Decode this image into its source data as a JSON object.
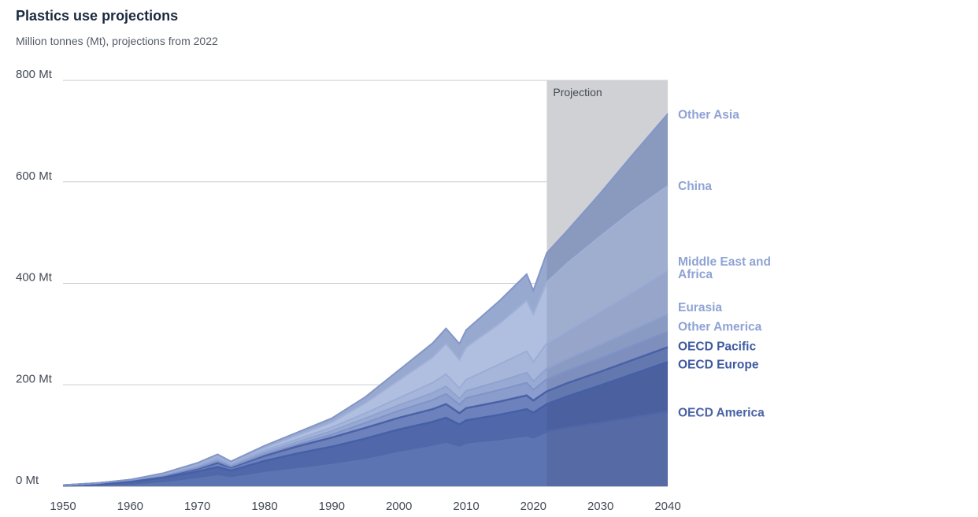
{
  "chart_data": {
    "type": "area",
    "stacked": true,
    "title": "Plastics use projections",
    "subtitle": "Million tonnes (Mt), projections from 2022",
    "projection_label": "Projection",
    "projection_start": 2022,
    "xlim": [
      1950,
      2040
    ],
    "ylim": [
      0,
      800
    ],
    "x_ticks": [
      1950,
      1960,
      1970,
      1980,
      1990,
      2000,
      2010,
      2020,
      2030,
      2040
    ],
    "y_ticks": [
      0,
      200,
      400,
      600,
      800
    ],
    "y_tick_labels": [
      "0 Mt",
      "200 Mt",
      "400 Mt",
      "600 Mt",
      "800 Mt"
    ],
    "grid": true,
    "x": [
      1950,
      1955,
      1960,
      1965,
      1970,
      1973,
      1975,
      1980,
      1985,
      1990,
      1995,
      2000,
      2005,
      2007,
      2009,
      2010,
      2015,
      2019,
      2020,
      2022,
      2025,
      2030,
      2035,
      2040
    ],
    "series": [
      {
        "name": "OECD America",
        "color": "#5d74b2",
        "label_color": "#4a62a6",
        "values": [
          1,
          3,
          5,
          10,
          18,
          24,
          20,
          30,
          38,
          46,
          56,
          70,
          82,
          88,
          80,
          86,
          93,
          100,
          96,
          108,
          115,
          125,
          136,
          147
        ]
      },
      {
        "name": "OECD Europe",
        "color": "#5068aa",
        "label_color": "#3f5aa0",
        "values": [
          1,
          2,
          4,
          7,
          11,
          14,
          11,
          20,
          27,
          32,
          38,
          42,
          45,
          47,
          42,
          44,
          48,
          52,
          49,
          54,
          62,
          74,
          86,
          98
        ]
      },
      {
        "name": "OECD Pacific",
        "color": "#6d82bd",
        "label_color": "#3f5aa0",
        "values": [
          0,
          1,
          2,
          3,
          5,
          8,
          6,
          10,
          14,
          18,
          21,
          23,
          25,
          27,
          22,
          24,
          26,
          27,
          24,
          25,
          26,
          27,
          28,
          29
        ]
      },
      {
        "name": "Other America",
        "color": "#8a9dcd",
        "label_color": "#8fa3d4",
        "values": [
          0,
          0,
          1,
          1,
          2,
          3,
          2,
          3,
          4,
          6,
          10,
          14,
          18,
          20,
          17,
          20,
          23,
          25,
          21,
          24,
          25,
          27,
          29,
          31
        ]
      },
      {
        "name": "Eurasia",
        "color": "#98aad3",
        "label_color": "#8fa3d4",
        "values": [
          0,
          0,
          1,
          2,
          3,
          4,
          3,
          4,
          5,
          7,
          9,
          11,
          14,
          15,
          12,
          14,
          17,
          20,
          17,
          21,
          23,
          27,
          31,
          35
        ]
      },
      {
        "name": "Middle East and Africa",
        "color": "#a6b6da",
        "label_color": "#8fa3d4",
        "values": [
          0,
          0,
          0,
          1,
          2,
          3,
          2,
          4,
          5,
          7,
          10,
          14,
          20,
          24,
          20,
          22,
          34,
          42,
          38,
          50,
          55,
          65,
          75,
          86
        ]
      },
      {
        "name": "China",
        "color": "#b0bfe0",
        "label_color": "#8fa3d4",
        "values": [
          0,
          0,
          0,
          1,
          2,
          3,
          2,
          5,
          8,
          10,
          20,
          35,
          50,
          60,
          56,
          64,
          80,
          100,
          94,
          120,
          133,
          148,
          160,
          166
        ]
      },
      {
        "name": "Other Asia",
        "color": "#98a9cf",
        "label_color": "#8fa3d4",
        "values": [
          0,
          0,
          0,
          1,
          3,
          4,
          3,
          4,
          6,
          8,
          12,
          20,
          28,
          30,
          32,
          34,
          45,
          52,
          47,
          58,
          64,
          85,
          112,
          142
        ]
      }
    ]
  }
}
